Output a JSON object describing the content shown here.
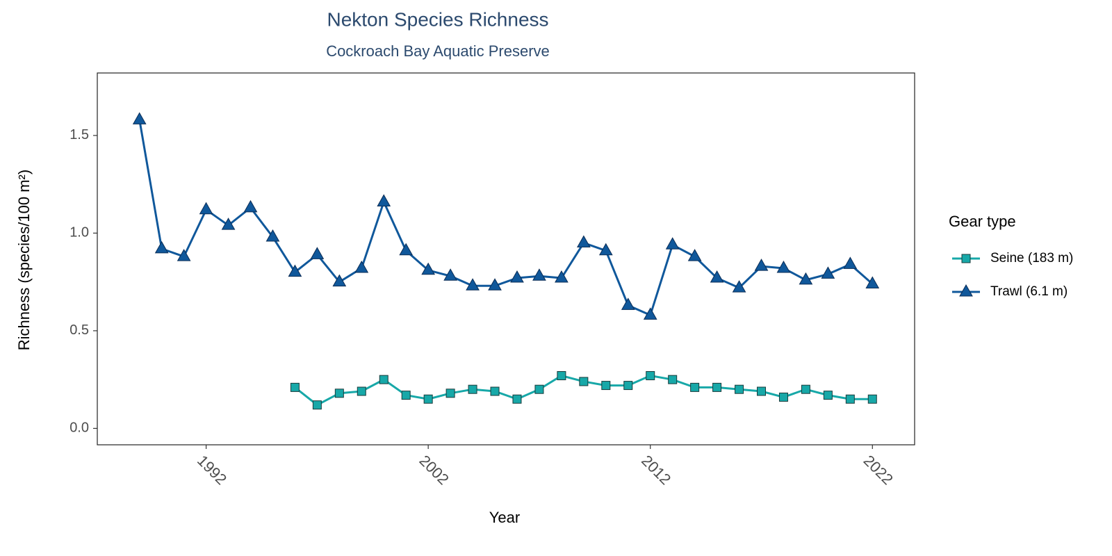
{
  "chart_data": {
    "type": "line",
    "title": "Nekton Species Richness",
    "subtitle": "Cockroach Bay Aquatic Preserve",
    "x_label": "Year",
    "y_label": "Richness (species/100 m²)",
    "legend_title": "Gear type",
    "legend_position": "right",
    "x": [
      1989,
      1990,
      1991,
      1992,
      1993,
      1994,
      1995,
      1996,
      1997,
      1998,
      1999,
      2000,
      2001,
      2002,
      2003,
      2004,
      2005,
      2006,
      2007,
      2008,
      2009,
      2010,
      2011,
      2012,
      2013,
      2014,
      2015,
      2016,
      2017,
      2018,
      2019,
      2020,
      2021,
      2022
    ],
    "xlim": [
      1987.1,
      2023.9
    ],
    "xticks": [
      1992,
      2002,
      2012,
      2022
    ],
    "ylim": [
      -0.084,
      1.82
    ],
    "yticks": [
      {
        "value": 0,
        "label": "0.0"
      },
      0.5,
      {
        "value": 1,
        "label": "1.0"
      },
      1.5
    ],
    "grid": false,
    "series": [
      {
        "name": "Seine (183 m)",
        "color": "#17a8a8",
        "marker": "square",
        "values": [
          null,
          null,
          null,
          null,
          null,
          null,
          null,
          0.21,
          0.12,
          0.18,
          0.19,
          0.25,
          0.17,
          0.15,
          0.18,
          0.2,
          0.19,
          0.15,
          0.2,
          0.27,
          0.24,
          0.22,
          0.22,
          0.27,
          0.25,
          0.21,
          0.21,
          0.2,
          0.19,
          0.16,
          0.2,
          0.17,
          0.15,
          0.15
        ]
      },
      {
        "name": "Trawl (6.1 m)",
        "color": "#10589b",
        "marker": "triangle",
        "values": [
          1.58,
          0.92,
          0.88,
          1.12,
          1.04,
          1.13,
          0.98,
          0.8,
          0.89,
          0.75,
          0.82,
          1.16,
          0.91,
          0.81,
          0.78,
          0.73,
          0.73,
          0.77,
          0.78,
          0.77,
          0.95,
          0.91,
          0.63,
          0.58,
          0.94,
          0.88,
          0.77,
          0.72,
          0.83,
          0.82,
          0.76,
          0.79,
          0.84,
          0.74
        ]
      }
    ]
  }
}
